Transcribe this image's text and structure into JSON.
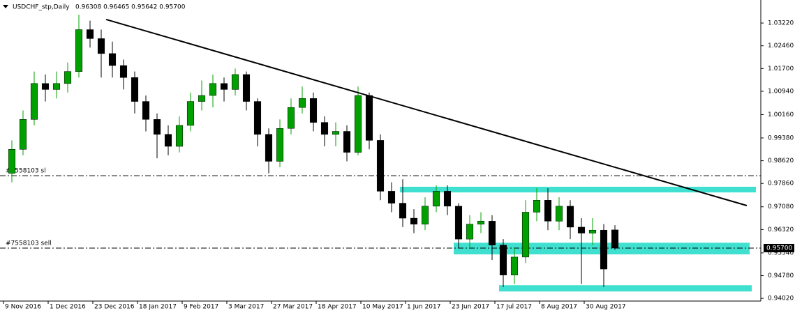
{
  "chart_data": {
    "type": "candlestick",
    "symbol": "USDCHF_stp,Daily",
    "quote": "0.96308 0.96465 0.95642 0.95700",
    "x": [
      3,
      7,
      11,
      15,
      19,
      23,
      27,
      31,
      35,
      39,
      43,
      47,
      51,
      55,
      59,
      63,
      67,
      71,
      75,
      79,
      83,
      87,
      91,
      95,
      99,
      103,
      107,
      111,
      115,
      119,
      123,
      127,
      131,
      135,
      139,
      143,
      147,
      151,
      155,
      159,
      163,
      167,
      171,
      175,
      179,
      183,
      187,
      191,
      195,
      199,
      203,
      207,
      211,
      215,
      219
    ],
    "open": [
      0.982,
      0.99,
      1.0,
      1.012,
      1.01,
      1.012,
      1.016,
      1.03,
      1.027,
      1.022,
      1.018,
      1.014,
      1.006,
      1.0,
      0.995,
      0.991,
      0.998,
      1.006,
      1.008,
      1.012,
      1.01,
      1.015,
      1.006,
      0.995,
      0.986,
      0.997,
      1.004,
      1.007,
      0.999,
      0.995,
      0.996,
      0.989,
      1.008,
      0.993,
      0.976,
      0.972,
      0.967,
      0.965,
      0.971,
      0.976,
      0.971,
      0.96,
      0.965,
      0.966,
      0.958,
      0.948,
      0.954,
      0.969,
      0.973,
      0.966,
      0.971,
      0.964,
      0.962,
      0.963,
      0.96308
    ],
    "high": [
      0.993,
      1.003,
      1.016,
      1.015,
      1.016,
      1.019,
      1.035,
      1.033,
      1.03,
      1.026,
      1.02,
      1.016,
      1.008,
      1.002,
      0.998,
      1.001,
      1.009,
      1.013,
      1.015,
      1.014,
      1.017,
      1.016,
      1.007,
      0.997,
      1.0,
      1.007,
      1.011,
      1.009,
      1.001,
      0.999,
      0.998,
      1.011,
      1.009,
      0.995,
      0.979,
      0.98,
      0.97,
      0.974,
      0.978,
      0.978,
      0.972,
      0.968,
      0.969,
      0.968,
      0.96,
      0.957,
      0.973,
      0.977,
      0.977,
      0.974,
      0.973,
      0.967,
      0.967,
      0.965,
      0.96465
    ],
    "low": [
      0.979,
      0.988,
      0.998,
      1.006,
      1.007,
      1.009,
      1.014,
      1.024,
      1.014,
      1.014,
      1.01,
      1.002,
      0.996,
      0.987,
      0.988,
      0.989,
      0.996,
      1.003,
      1.004,
      1.006,
      1.008,
      1.003,
      0.991,
      0.982,
      0.984,
      0.995,
      1.002,
      0.996,
      0.991,
      0.991,
      0.986,
      0.988,
      0.99,
      0.973,
      0.969,
      0.964,
      0.962,
      0.963,
      0.969,
      0.968,
      0.957,
      0.957,
      0.962,
      0.953,
      0.944,
      0.945,
      0.952,
      0.966,
      0.963,
      0.963,
      0.96,
      0.945,
      0.958,
      0.944,
      0.95642
    ],
    "close": [
      0.99,
      1.0,
      1.012,
      1.01,
      1.012,
      1.016,
      1.03,
      1.027,
      1.022,
      1.018,
      1.014,
      1.006,
      1.0,
      0.995,
      0.991,
      0.998,
      1.006,
      1.008,
      1.012,
      1.01,
      1.015,
      1.006,
      0.995,
      0.986,
      0.997,
      1.004,
      1.007,
      0.999,
      0.995,
      0.996,
      0.989,
      1.008,
      0.993,
      0.976,
      0.972,
      0.967,
      0.965,
      0.971,
      0.976,
      0.971,
      0.96,
      0.965,
      0.966,
      0.958,
      0.948,
      0.954,
      0.969,
      0.973,
      0.966,
      0.971,
      0.964,
      0.962,
      0.963,
      0.95,
      0.957
    ],
    "bull_color": "#00a000",
    "bear_color": "#000000",
    "xlim": [
      -1.25,
      271.25
    ],
    "ylim": [
      0.9393,
      1.0399
    ],
    "xticks": [
      {
        "value": 0,
        "label": "9 Nov 2016"
      },
      {
        "value": 16,
        "label": "1 Dec 2016"
      },
      {
        "value": 32,
        "label": "23 Dec 2016"
      },
      {
        "value": 48,
        "label": "18 Jan 2017"
      },
      {
        "value": 64,
        "label": "9 Feb 2017"
      },
      {
        "value": 80,
        "label": "3 Mar 2017"
      },
      {
        "value": 96,
        "label": "27 Mar 2017"
      },
      {
        "value": 112,
        "label": "18 Apr 2017"
      },
      {
        "value": 128,
        "label": "10 May 2017"
      },
      {
        "value": 144,
        "label": "1 Jun 2017"
      },
      {
        "value": 160,
        "label": "23 Jun 2017"
      },
      {
        "value": 176,
        "label": "17 Jul 2017"
      },
      {
        "value": 192,
        "label": "8 Aug 2017"
      },
      {
        "value": 208,
        "label": "30 Aug 2017"
      }
    ],
    "yticks": [
      {
        "value": 1.0322,
        "label": "1.03220"
      },
      {
        "value": 1.0246,
        "label": "1.02460"
      },
      {
        "value": 1.017,
        "label": "1.01700"
      },
      {
        "value": 1.0094,
        "label": "1.00940"
      },
      {
        "value": 1.0016,
        "label": "1.00160"
      },
      {
        "value": 0.9938,
        "label": "0.99380"
      },
      {
        "value": 0.9862,
        "label": "0.98620"
      },
      {
        "value": 0.9786,
        "label": "0.97860"
      },
      {
        "value": 0.9708,
        "label": "0.97080"
      },
      {
        "value": 0.9632,
        "label": "0.96320"
      },
      {
        "value": 0.9554,
        "label": "0.95540"
      },
      {
        "value": 0.9478,
        "label": "0.94780"
      },
      {
        "value": 0.9402,
        "label": "0.94020"
      }
    ],
    "current_price": {
      "value": 0.957,
      "label": "0.95700"
    },
    "trend_line": {
      "x": [
        36.75,
        266.25
      ],
      "y": [
        1.0334,
        0.9712
      ],
      "color": "#000000"
    },
    "levels": [
      {
        "name": "#7558103 sl",
        "value": 0.9812
      },
      {
        "name": "#7558103 sell",
        "value": 0.957
      }
    ],
    "zones": [
      {
        "x": [
          142,
          269.5
        ],
        "y": [
          0.9756,
          0.9775
        ]
      },
      {
        "x": [
          161.25,
          267.25
        ],
        "y": [
          0.9549,
          0.9588
        ]
      },
      {
        "x": [
          177.5,
          268
        ],
        "y": [
          0.9425,
          0.9446
        ]
      }
    ],
    "zone_color": "#40e0d0"
  }
}
